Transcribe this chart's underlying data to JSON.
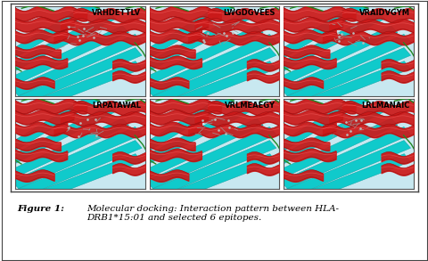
{
  "figure_title_bold": "Figure 1:",
  "figure_title_rest": " Molecular docking: Interaction pattern between HLA-\nDRB1*15:01 and selected 6 epitopes.",
  "panel_labels": [
    "VRHDETTLV",
    "LWGDGVEES",
    "VRAIDVGYM",
    "LRPATAWAL",
    "VRLMEAEGY",
    "LRLMANAIC"
  ],
  "nrows": 2,
  "ncols": 3,
  "outer_bg": "#ffffff",
  "panel_bg": "#c8e8f0",
  "helix_color": "#cc1a1a",
  "helix_shade": "#991111",
  "sheet_color": "#00c8c8",
  "sheet_shade": "#009999",
  "loop_color": "#228822",
  "label_fontsize": 6.0,
  "caption_fontsize": 7.5,
  "border_color": "#555555",
  "border_lw": 0.8,
  "fig_width": 4.81,
  "fig_height": 2.93
}
